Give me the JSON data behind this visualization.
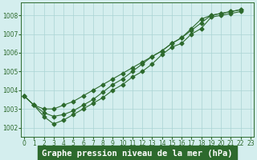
{
  "title": "Graphe pression niveau de la mer (hPa)",
  "x_ticks": [
    0,
    1,
    2,
    3,
    4,
    5,
    6,
    7,
    8,
    9,
    10,
    11,
    12,
    13,
    14,
    15,
    16,
    17,
    18,
    19,
    20,
    21,
    22,
    23
  ],
  "ylim": [
    1001.5,
    1008.7
  ],
  "xlim": [
    -0.3,
    23.3
  ],
  "yticks": [
    1002,
    1003,
    1004,
    1005,
    1006,
    1007,
    1008
  ],
  "line_top": [
    1003.7,
    1003.2,
    1003.0,
    1003.0,
    1003.2,
    1003.4,
    1003.7,
    1004.0,
    1004.3,
    1004.6,
    1004.9,
    1005.2,
    1005.5,
    1005.8,
    1006.1,
    1006.5,
    1006.8,
    1007.3,
    1007.8,
    1008.0,
    1008.1,
    1008.2,
    1008.3
  ],
  "line_mid": [
    1003.7,
    1003.2,
    1002.8,
    1002.6,
    1002.7,
    1002.9,
    1003.2,
    1003.5,
    1003.9,
    1004.3,
    1004.6,
    1005.0,
    1005.4,
    1005.8,
    1006.1,
    1006.5,
    1006.8,
    1007.2,
    1007.6,
    1008.0,
    1008.1,
    1008.2,
    1008.3
  ],
  "line_bot": [
    1003.7,
    1003.2,
    1002.6,
    1002.2,
    1002.4,
    1002.7,
    1003.0,
    1003.3,
    1003.6,
    1004.0,
    1004.3,
    1004.7,
    1005.0,
    1005.4,
    1005.9,
    1006.3,
    1006.5,
    1007.0,
    1007.3,
    1007.9,
    1008.0,
    1008.1,
    1008.2
  ],
  "line_color": "#2d6a2d",
  "bg_color": "#d4eeee",
  "grid_color": "#aad4d4",
  "marker": "D",
  "marker_size": 2.5,
  "linewidth": 0.8,
  "title_fontsize": 7.5,
  "tick_fontsize": 5.5,
  "title_bg": "#2d6a2d",
  "title_fg": "#ffffff"
}
